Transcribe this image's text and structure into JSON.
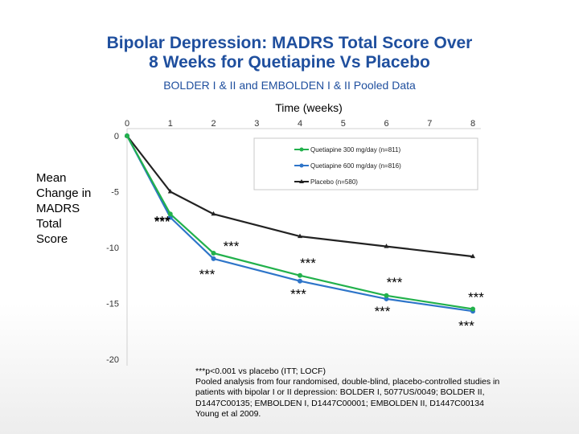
{
  "title_line1": "Bipolar Depression: MADRS Total Score Over",
  "title_line2": "8 Weeks for Quetiapine Vs Placebo",
  "subtitle": "BOLDER I & II and EMBOLDEN I & II Pooled Data",
  "ylabel_lines": [
    "Mean",
    "Change in",
    "MADRS",
    "Total",
    "Score"
  ],
  "footnote_lines": [
    "***p<0.001 vs placebo (ITT; LOCF)",
    "Pooled analysis from four randomised, double-blind, placebo-controlled studies in",
    "patients with bipolar I or II depression: BOLDER I, 5077US/0049; BOLDER II,",
    "D1447C00135; EMBOLDEN I, D1447C00001; EMBOLDEN II, D1447C00134",
    "Young et al 2009."
  ],
  "chart_data": {
    "type": "line",
    "xlabel": "Time (weeks)",
    "ylabel": "Mean Change in MADRS Total Score",
    "xlim": [
      0,
      8
    ],
    "ylim": [
      -20,
      0
    ],
    "x_ticks": [
      "0",
      "1",
      "2",
      "3",
      "4",
      "5",
      "6",
      "7",
      "8"
    ],
    "y_ticks": [
      "0",
      "-5",
      "-10",
      "-15",
      "-20"
    ],
    "x_axis_position": "top",
    "legend_position": "top-right",
    "series": [
      {
        "name": "Quetiapine 300 mg/day (n=811)",
        "color": "#22b14c",
        "marker": "circle",
        "x": [
          0,
          1,
          2,
          4,
          6,
          8
        ],
        "y": [
          0,
          -7.0,
          -10.5,
          -12.5,
          -14.3,
          -15.5
        ],
        "labels": [
          "",
          "***",
          "***",
          "***",
          "***",
          "***"
        ]
      },
      {
        "name": "Quetiapine 600 mg/day (n=816)",
        "color": "#2e75c9",
        "marker": "circle",
        "x": [
          0,
          1,
          2,
          4,
          6,
          8
        ],
        "y": [
          0,
          -7.3,
          -11.0,
          -13.0,
          -14.6,
          -15.7
        ],
        "labels": [
          "",
          "***",
          "***",
          "***",
          "***",
          "***"
        ]
      },
      {
        "name": "Placebo (n=580)",
        "color": "#222222",
        "marker": "triangle",
        "x": [
          0,
          1,
          2,
          4,
          6,
          8
        ],
        "y": [
          0,
          -5.0,
          -7.0,
          -9.0,
          -9.9,
          -10.8
        ]
      }
    ]
  }
}
